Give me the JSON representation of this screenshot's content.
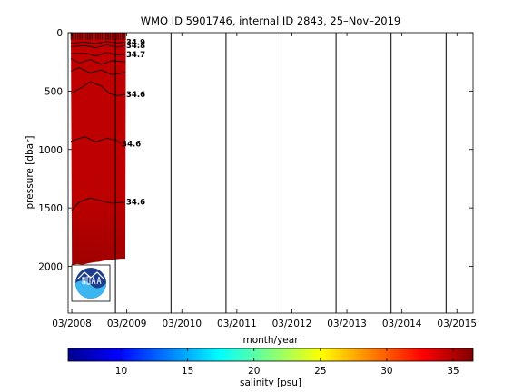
{
  "chart_data": {
    "type": "heatmap",
    "title": "WMO ID 5901746, internal ID 2843, 25–Nov–2019",
    "xlabel": "month/year",
    "ylabel": "pressure [dbar]",
    "x_tick_labels": [
      "03/2008",
      "03/2009",
      "03/2010",
      "03/2011",
      "03/2012",
      "03/2013",
      "03/2014",
      "03/2015"
    ],
    "x_tick_years": [
      2008.167,
      2009.167,
      2010.167,
      2011.167,
      2012.167,
      2013.167,
      2014.167,
      2015.167
    ],
    "xlim": [
      2008.1,
      2015.46
    ],
    "y_tick_labels": [
      "0",
      "500",
      "1000",
      "1500",
      "2000"
    ],
    "y_ticks": [
      0,
      500,
      1000,
      1500,
      2000
    ],
    "ylim": [
      2400,
      0
    ],
    "y_reversed": true,
    "profile_year_bounds": [
      2008.15,
      2009.15
    ],
    "profile_separator_years": [
      2008.96,
      2009.97,
      2010.97,
      2011.97,
      2012.97,
      2013.97,
      2014.97
    ],
    "max_pressure_profile": [
      [
        2008.17,
        1990
      ],
      [
        2008.26,
        1980
      ],
      [
        2008.36,
        1985
      ],
      [
        2008.46,
        1975
      ],
      [
        2008.56,
        1965
      ],
      [
        2008.66,
        1960
      ],
      [
        2008.76,
        1950
      ],
      [
        2008.86,
        1945
      ],
      [
        2008.96,
        1940
      ],
      [
        2009.06,
        1935
      ],
      [
        2009.14,
        1935
      ]
    ],
    "contours": [
      {
        "label": "34.6",
        "points": [
          [
            2008.15,
            930
          ],
          [
            2008.4,
            890
          ],
          [
            2008.6,
            935
          ],
          [
            2008.8,
            905
          ],
          [
            2008.96,
            920
          ],
          [
            2009.06,
            950
          ]
        ]
      },
      {
        "label": "34.6",
        "points": [
          [
            2008.15,
            1530
          ],
          [
            2008.3,
            1450
          ],
          [
            2008.5,
            1415
          ],
          [
            2008.7,
            1440
          ],
          [
            2008.9,
            1460
          ],
          [
            2009.14,
            1450
          ]
        ]
      },
      {
        "label": "34.6",
        "points": [
          [
            2008.15,
            520
          ],
          [
            2008.35,
            470
          ],
          [
            2008.5,
            420
          ],
          [
            2008.7,
            455
          ],
          [
            2008.85,
            520
          ],
          [
            2009.0,
            540
          ],
          [
            2009.14,
            530
          ]
        ]
      },
      {
        "label": "34.7",
        "points": [
          [
            2008.15,
            180
          ],
          [
            2008.4,
            175
          ],
          [
            2008.6,
            200
          ],
          [
            2008.8,
            170
          ],
          [
            2009.0,
            190
          ],
          [
            2009.14,
            185
          ]
        ]
      },
      {
        "label": "34.8",
        "points": [
          [
            2008.15,
            120
          ],
          [
            2008.4,
            110
          ],
          [
            2008.6,
            130
          ],
          [
            2008.8,
            105
          ],
          [
            2009.0,
            125
          ],
          [
            2009.14,
            110
          ]
        ]
      },
      {
        "label": "34.9",
        "points": [
          [
            2008.15,
            90
          ],
          [
            2008.4,
            80
          ],
          [
            2008.6,
            95
          ],
          [
            2008.8,
            75
          ],
          [
            2009.0,
            88
          ],
          [
            2009.14,
            80
          ]
        ]
      },
      {
        "label": "",
        "points": [
          [
            2008.15,
            220
          ],
          [
            2008.3,
            260
          ],
          [
            2008.5,
            230
          ],
          [
            2008.7,
            270
          ],
          [
            2008.9,
            240
          ],
          [
            2009.14,
            250
          ]
        ]
      },
      {
        "label": "",
        "points": [
          [
            2008.15,
            330
          ],
          [
            2008.3,
            300
          ],
          [
            2008.5,
            345
          ],
          [
            2008.7,
            320
          ],
          [
            2008.9,
            360
          ],
          [
            2009.14,
            340
          ]
        ]
      }
    ],
    "colorbar": {
      "label": "salinity [psu]",
      "range": [
        6,
        36.5
      ],
      "tick_values": [
        10,
        15,
        20,
        25,
        30,
        35
      ],
      "tick_labels": [
        "10",
        "15",
        "20",
        "25",
        "30",
        "35"
      ],
      "colormap": "jet"
    },
    "logo": "NOAA",
    "colors": {
      "field": "#bd0000",
      "field_deep": "#8c0000",
      "contour": "#000000",
      "separator": "#000000"
    }
  }
}
